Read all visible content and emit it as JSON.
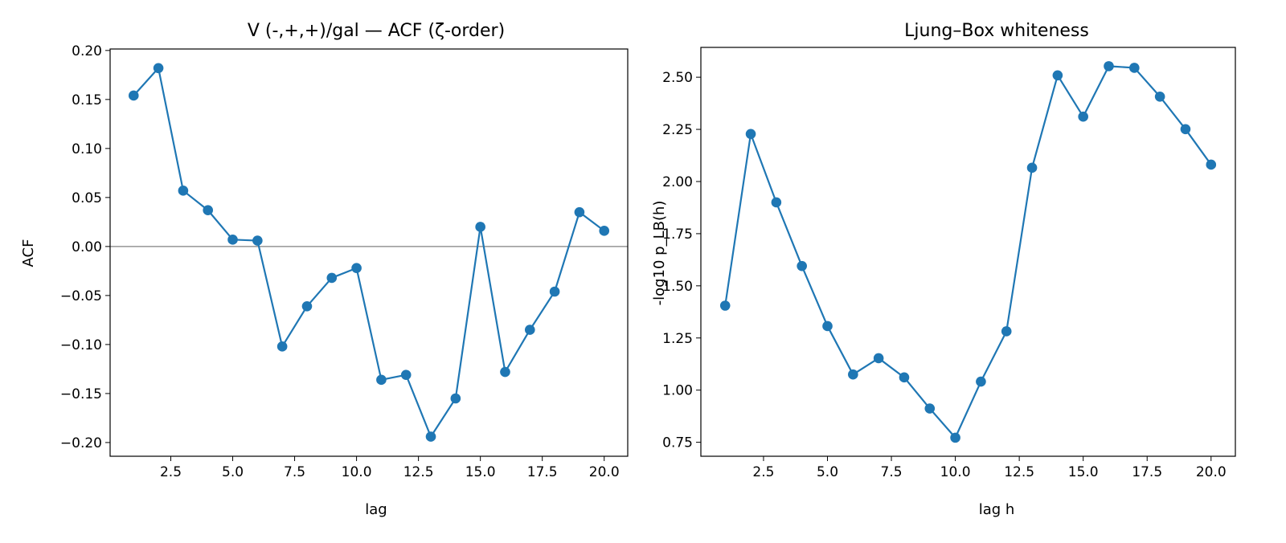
{
  "style": {
    "series_color": "#1f77b4",
    "zero_line_color": "#808080",
    "axes_color": "#000000"
  },
  "chart_data": [
    {
      "type": "line",
      "title": "V (-,+,+)/gal — ACF (ζ-order)",
      "xlabel": "lag",
      "ylabel": "ACF",
      "xlim": [
        0.05,
        20.95
      ],
      "ylim": [
        -0.214,
        0.2015
      ],
      "xticks": [
        2.5,
        5.0,
        7.5,
        10.0,
        12.5,
        15.0,
        17.5,
        20.0
      ],
      "xtick_labels": [
        "2.5",
        "5.0",
        "7.5",
        "10.0",
        "12.5",
        "15.0",
        "17.5",
        "20.0"
      ],
      "yticks": [
        -0.2,
        -0.15,
        -0.1,
        -0.05,
        0.0,
        0.05,
        0.1,
        0.15,
        0.2
      ],
      "ytick_labels": [
        "−0.20",
        "−0.15",
        "−0.10",
        "−0.05",
        "0.00",
        "0.05",
        "0.10",
        "0.15",
        "0.20"
      ],
      "hline": 0.0,
      "grid": false,
      "markers": true,
      "series": [
        {
          "x": [
            1,
            2,
            3,
            4,
            5,
            6,
            7,
            8,
            9,
            10,
            11,
            12,
            13,
            14,
            15,
            16,
            17,
            18,
            19,
            20
          ],
          "values": [
            0.154,
            0.182,
            0.057,
            0.037,
            0.007,
            0.006,
            -0.102,
            -0.061,
            -0.032,
            -0.022,
            -0.136,
            -0.131,
            -0.194,
            -0.155,
            0.02,
            -0.128,
            -0.085,
            -0.046,
            0.035,
            0.016
          ]
        }
      ]
    },
    {
      "type": "line",
      "title": "Ljung–Box whiteness",
      "xlabel": "lag h",
      "ylabel": "-log10 p_LB(h)",
      "xlim": [
        0.05,
        20.95
      ],
      "ylim": [
        0.683,
        2.643
      ],
      "xticks": [
        2.5,
        5.0,
        7.5,
        10.0,
        12.5,
        15.0,
        17.5,
        20.0
      ],
      "xtick_labels": [
        "2.5",
        "5.0",
        "7.5",
        "10.0",
        "12.5",
        "15.0",
        "17.5",
        "20.0"
      ],
      "yticks": [
        0.75,
        1.0,
        1.25,
        1.5,
        1.75,
        2.0,
        2.25,
        2.5
      ],
      "ytick_labels": [
        "0.75",
        "1.00",
        "1.25",
        "1.50",
        "1.75",
        "2.00",
        "2.25",
        "2.50"
      ],
      "grid": false,
      "markers": true,
      "series": [
        {
          "x": [
            1,
            2,
            3,
            4,
            5,
            6,
            7,
            8,
            9,
            10,
            11,
            12,
            13,
            14,
            15,
            16,
            17,
            18,
            19,
            20
          ],
          "values": [
            1.405,
            2.228,
            1.9,
            1.595,
            1.307,
            1.075,
            1.153,
            1.061,
            0.912,
            0.772,
            1.041,
            1.282,
            2.066,
            2.509,
            2.311,
            2.553,
            2.545,
            2.407,
            2.251,
            2.081
          ]
        }
      ]
    }
  ]
}
